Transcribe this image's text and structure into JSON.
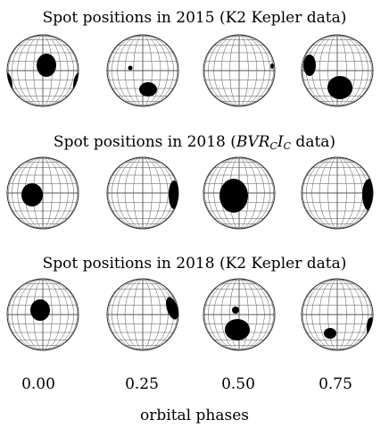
{
  "titles": {
    "row1": "Spot positions in 2015 (K2 Kepler data)",
    "row2_prefix": "Spot positions in 2018 (",
    "row2_b": "B",
    "row2_v": "V",
    "row2_r": "R",
    "row2_c1": "C",
    "row2_i": "I",
    "row2_c2": "C",
    "row2_suffix": " data)",
    "row3": "Spot positions in 2018 (K2 Kepler data)"
  },
  "phases": [
    "0.00",
    "0.25",
    "0.50",
    "0.75"
  ],
  "xlabel": "orbital phases",
  "colors": {
    "grid": "#555555",
    "spot": "#000000",
    "background": "#ffffff"
  }
}
